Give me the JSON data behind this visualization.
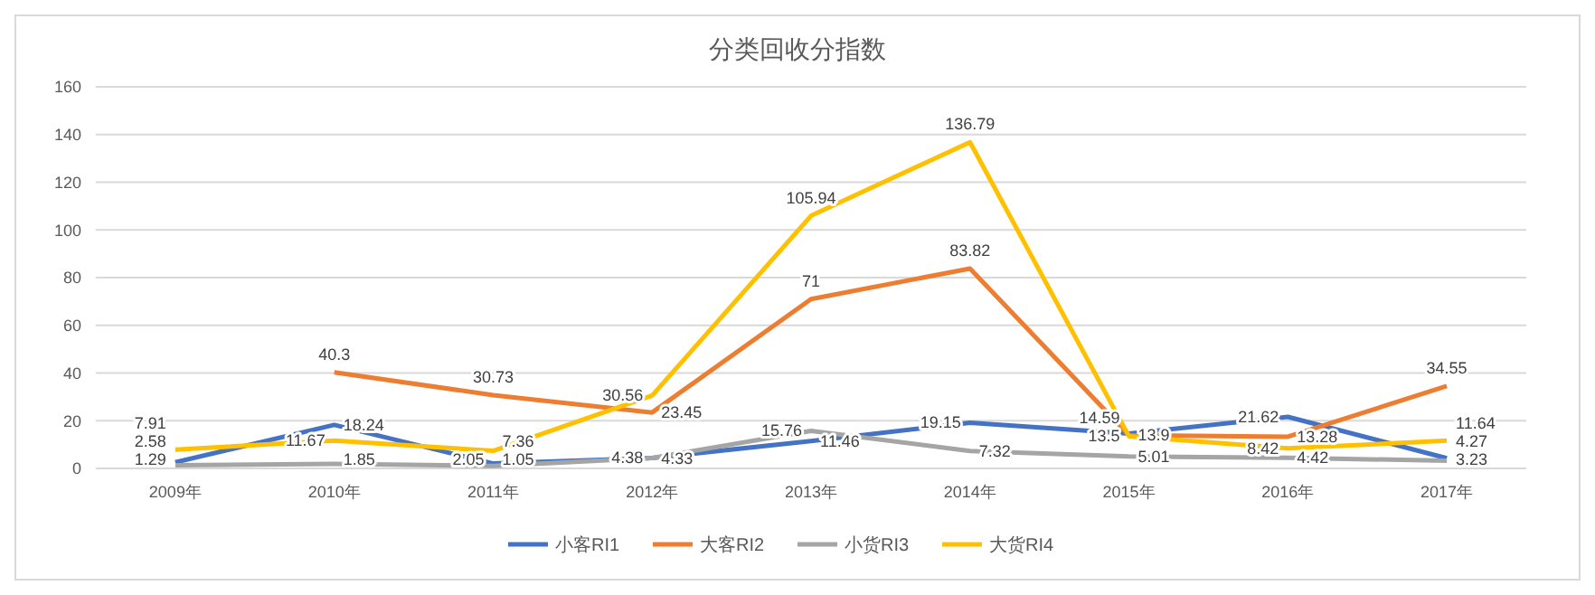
{
  "chart_data": {
    "type": "line",
    "title": "分类回收分指数",
    "categories": [
      "2009年",
      "2010年",
      "2011年",
      "2012年",
      "2013年",
      "2014年",
      "2015年",
      "2016年",
      "2017年"
    ],
    "series": [
      {
        "name": "小客RI1",
        "color": "#4472c4",
        "values": [
          2.58,
          18.24,
          2.05,
          4.38,
          11.46,
          19.15,
          14.59,
          21.62,
          4.27
        ]
      },
      {
        "name": "大客RI2",
        "color": "#ed7d31",
        "values": [
          null,
          40.3,
          30.73,
          23.45,
          71,
          83.82,
          13.9,
          13.28,
          34.55
        ]
      },
      {
        "name": "小货RI3",
        "color": "#a5a5a5",
        "values": [
          1.29,
          1.85,
          1.05,
          4.33,
          15.76,
          7.32,
          5.01,
          4.42,
          3.23
        ]
      },
      {
        "name": "大货RI4",
        "color": "#ffc000",
        "values": [
          7.91,
          11.67,
          7.36,
          30.56,
          105.94,
          136.79,
          13.5,
          8.42,
          11.64
        ]
      }
    ],
    "ylim": [
      0,
      160
    ],
    "yticks": [
      0,
      20,
      40,
      60,
      80,
      100,
      120,
      140,
      160
    ],
    "grid": "y",
    "legend": "bottom",
    "data_labels": true,
    "marker": "none",
    "line_style": "solid"
  }
}
